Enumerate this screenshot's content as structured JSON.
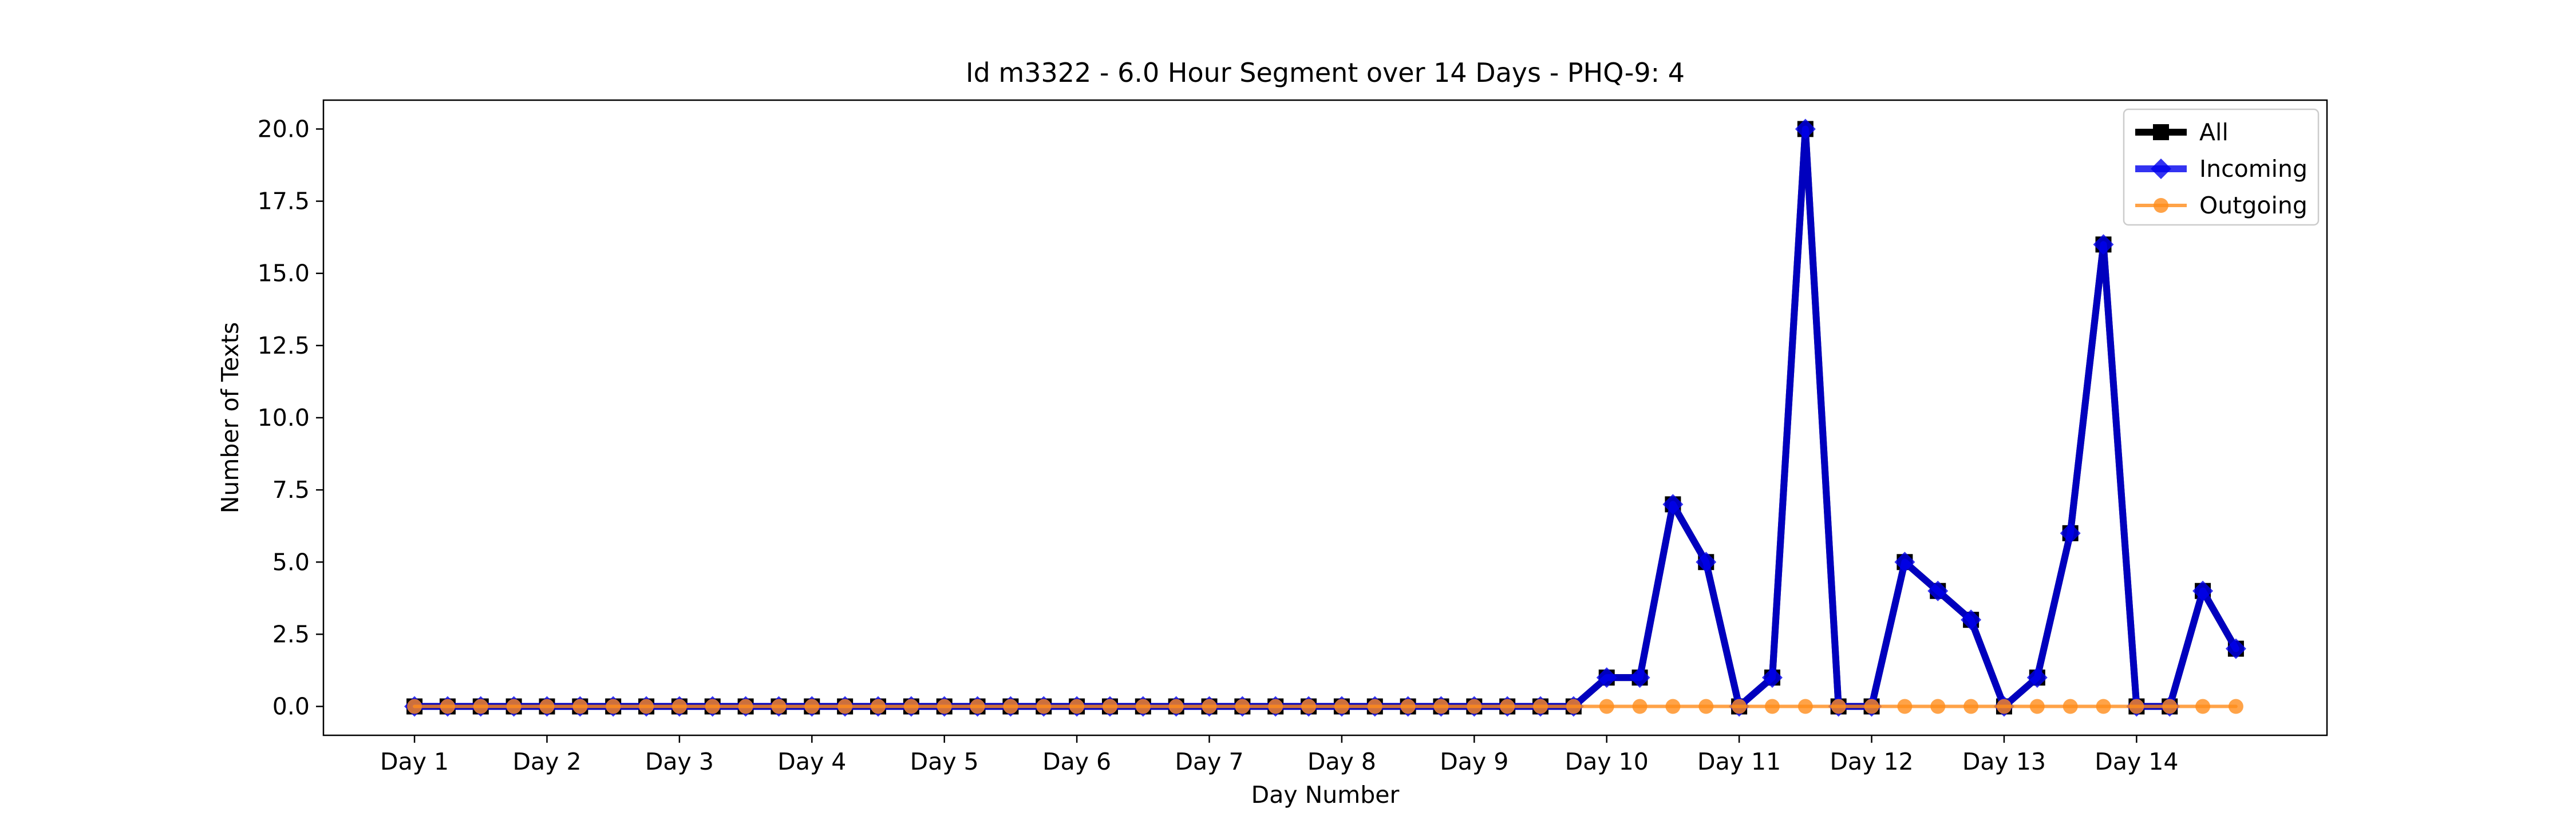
{
  "chart_data": {
    "type": "line",
    "title": "Id m3322 - 6.0 Hour Segment over 14 Days - PHQ-9: 4",
    "xlabel": "Day Number",
    "ylabel": "Number of Texts",
    "ylim": [
      -1.0,
      21.0
    ],
    "yticks": [
      "0.0",
      "2.5",
      "5.0",
      "7.5",
      "10.0",
      "12.5",
      "15.0",
      "17.5",
      "20.0"
    ],
    "ytick_values": [
      0,
      2.5,
      5,
      7.5,
      10,
      12.5,
      15,
      17.5,
      20
    ],
    "xticks": [
      "Day 1",
      "Day 2",
      "Day 3",
      "Day 4",
      "Day 5",
      "Day 6",
      "Day 7",
      "Day 8",
      "Day 9",
      "Day 10",
      "Day 11",
      "Day 12",
      "Day 13",
      "Day 14"
    ],
    "xtick_positions": [
      0,
      4,
      8,
      12,
      16,
      20,
      24,
      28,
      32,
      36,
      40,
      44,
      48,
      52
    ],
    "xlim": [
      -2.75,
      57.75
    ],
    "grid": false,
    "legend_position": "top-right",
    "series": [
      {
        "name": "All",
        "color": "#000000",
        "marker": "square",
        "values": [
          0,
          0,
          0,
          0,
          0,
          0,
          0,
          0,
          0,
          0,
          0,
          0,
          0,
          0,
          0,
          0,
          0,
          0,
          0,
          0,
          0,
          0,
          0,
          0,
          0,
          0,
          0,
          0,
          0,
          0,
          0,
          0,
          0,
          0,
          0,
          0,
          1,
          1,
          7,
          5,
          0,
          1,
          20,
          0,
          0,
          5,
          4,
          3,
          0,
          1,
          6,
          16,
          0,
          0,
          4,
          2
        ]
      },
      {
        "name": "Incoming",
        "color": "#0000ee",
        "marker": "diamond",
        "values": [
          0,
          0,
          0,
          0,
          0,
          0,
          0,
          0,
          0,
          0,
          0,
          0,
          0,
          0,
          0,
          0,
          0,
          0,
          0,
          0,
          0,
          0,
          0,
          0,
          0,
          0,
          0,
          0,
          0,
          0,
          0,
          0,
          0,
          0,
          0,
          0,
          1,
          1,
          7,
          5,
          0,
          1,
          20,
          0,
          0,
          5,
          4,
          3,
          0,
          1,
          6,
          16,
          0,
          0,
          4,
          2
        ]
      },
      {
        "name": "Outgoing",
        "color": "#ff8c1a",
        "marker": "circle",
        "values": [
          0,
          0,
          0,
          0,
          0,
          0,
          0,
          0,
          0,
          0,
          0,
          0,
          0,
          0,
          0,
          0,
          0,
          0,
          0,
          0,
          0,
          0,
          0,
          0,
          0,
          0,
          0,
          0,
          0,
          0,
          0,
          0,
          0,
          0,
          0,
          0,
          0,
          0,
          0,
          0,
          0,
          0,
          0,
          0,
          0,
          0,
          0,
          0,
          0,
          0,
          0,
          0,
          0,
          0,
          0,
          0
        ]
      }
    ]
  }
}
